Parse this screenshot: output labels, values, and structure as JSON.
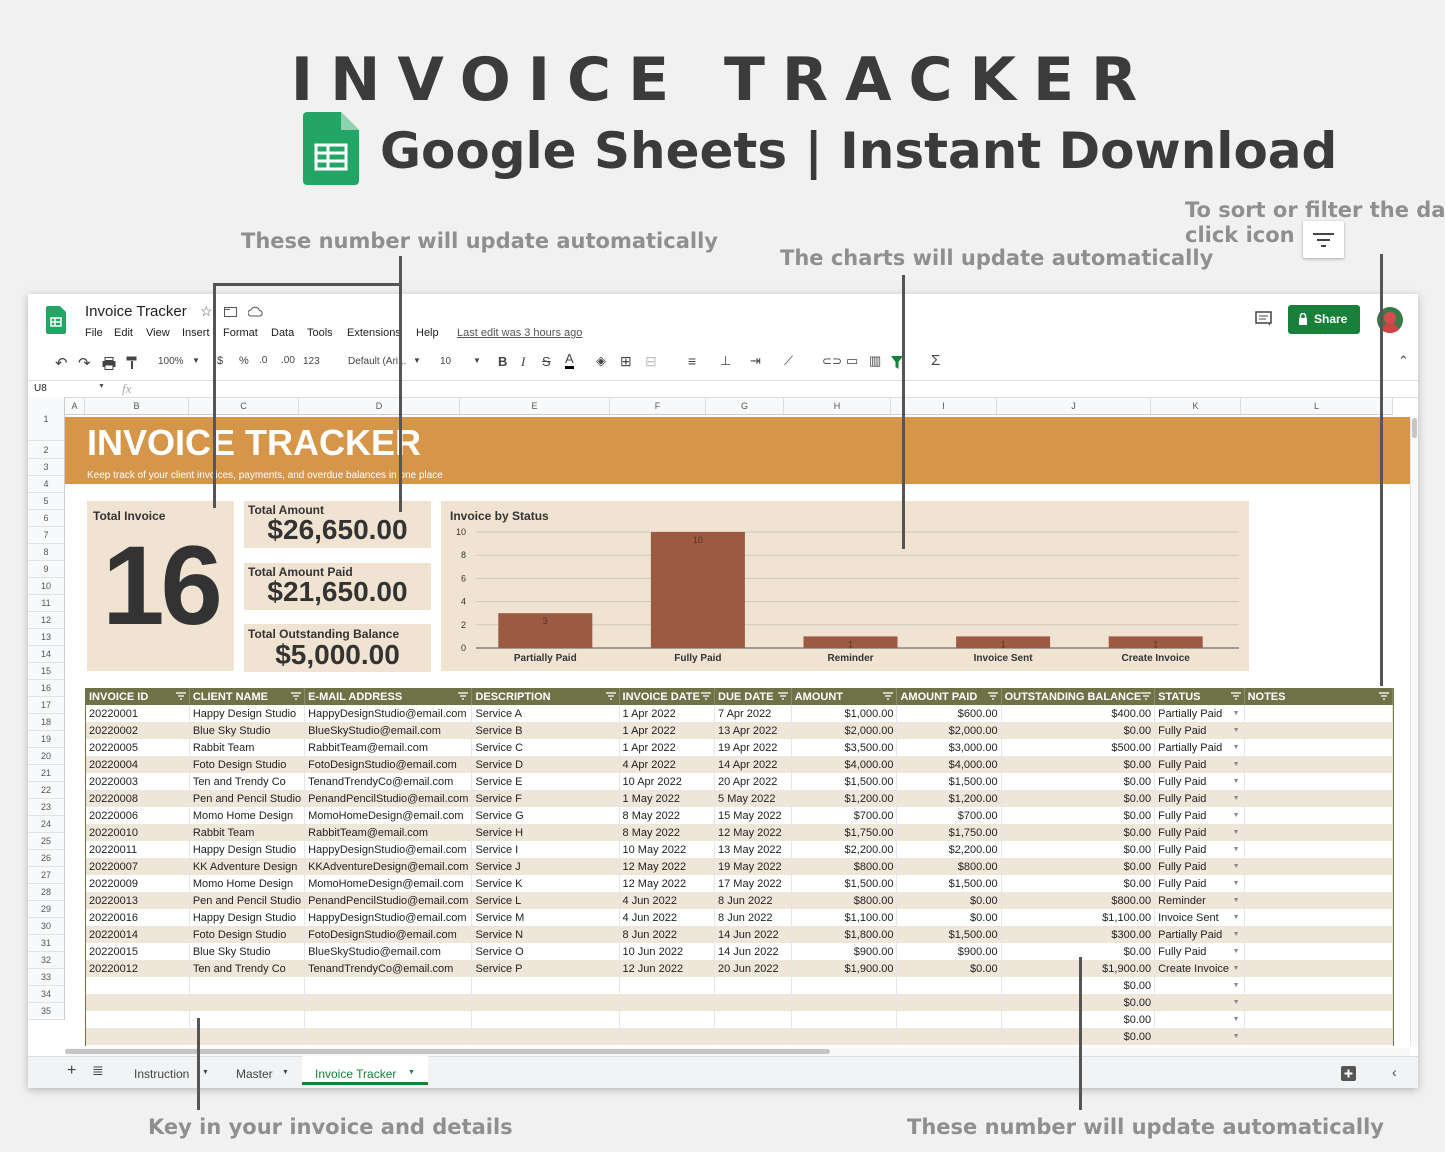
{
  "hero": {
    "title": "INVOICE TRACKER",
    "subtitle": "Google Sheets | Instant Download"
  },
  "annotations": {
    "numbers_top": "These number will update automatically",
    "charts": "The charts will update automatically",
    "sort_line1": "To sort or filter the data,",
    "sort_line2": "click icon",
    "key_in": "Key in your invoice and details",
    "numbers_bottom": "These number will update automatically"
  },
  "app": {
    "doc_title": "Invoice Tracker",
    "menus": [
      "File",
      "Edit",
      "View",
      "Insert",
      "Format",
      "Data",
      "Tools",
      "Extensions",
      "Help"
    ],
    "last_edit": "Last edit was 3 hours ago",
    "share_label": "Share",
    "zoom": "100%",
    "currency": "$",
    "percent": "%",
    "dec_less": ".0",
    "dec_more": ".00",
    "number_format": "123",
    "font": "Default (Ari...",
    "font_size": "10",
    "cell_ref": "U8",
    "fx": "fx"
  },
  "columns": [
    "A",
    "B",
    "C",
    "D",
    "E",
    "F",
    "G",
    "H",
    "I",
    "J",
    "K",
    "L"
  ],
  "rows": [
    "1",
    "2",
    "3",
    "4",
    "5",
    "6",
    "7",
    "8",
    "9",
    "10",
    "11",
    "12",
    "13",
    "14",
    "15",
    "16",
    "17",
    "18",
    "19",
    "20",
    "21",
    "22",
    "23",
    "24",
    "25",
    "26",
    "27",
    "28",
    "29",
    "30",
    "31",
    "32",
    "33",
    "34",
    "35"
  ],
  "sheet": {
    "banner_title": "INVOICE TRACKER",
    "banner_subtitle": "Keep track of your client invoices, payments, and overdue balances in one place",
    "kpi": {
      "total_invoice_label": "Total Invoice",
      "total_invoice_value": "16",
      "total_amount_label": "Total Amount",
      "total_amount_value": "$26,650.00",
      "total_paid_label": "Total Amount Paid",
      "total_paid_value": "$21,650.00",
      "outstanding_label": "Total Outstanding Balance",
      "outstanding_value": "$5,000.00"
    }
  },
  "chart_data": {
    "type": "bar",
    "title": "Invoice by Status",
    "categories": [
      "Partially Paid",
      "Fully Paid",
      "Reminder",
      "Invoice Sent",
      "Create Invoice"
    ],
    "values": [
      3,
      10,
      1,
      1,
      1
    ],
    "ylim": [
      0,
      10
    ],
    "yticks": [
      0,
      2,
      4,
      6,
      8,
      10
    ],
    "bar_color": "#9b5a41",
    "grid": true,
    "legend": "none"
  },
  "table": {
    "headers": [
      "INVOICE ID",
      "CLIENT NAME",
      "E-MAIL ADDRESS",
      "DESCRIPTION",
      "INVOICE DATE",
      "DUE DATE",
      "AMOUNT",
      "AMOUNT PAID",
      "OUTSTANDING BALANCE",
      "STATUS",
      "NOTES"
    ],
    "rows": [
      [
        "20220001",
        "Happy Design Studio",
        "HappyDesignStudio@email.com",
        "Service A",
        "1 Apr 2022",
        "7 Apr 2022",
        "$1,000.00",
        "$600.00",
        "$400.00",
        "Partially Paid",
        ""
      ],
      [
        "20220002",
        "Blue Sky Studio",
        "BlueSkyStudio@email.com",
        "Service B",
        "1 Apr 2022",
        "13 Apr 2022",
        "$2,000.00",
        "$2,000.00",
        "$0.00",
        "Fully Paid",
        ""
      ],
      [
        "20220005",
        "Rabbit Team",
        "RabbitTeam@email.com",
        "Service C",
        "1 Apr 2022",
        "19 Apr 2022",
        "$3,500.00",
        "$3,000.00",
        "$500.00",
        "Partially Paid",
        ""
      ],
      [
        "20220004",
        "Foto Design Studio",
        "FotoDesignStudio@email.com",
        "Service D",
        "4 Apr 2022",
        "14 Apr 2022",
        "$4,000.00",
        "$4,000.00",
        "$0.00",
        "Fully Paid",
        ""
      ],
      [
        "20220003",
        "Ten and Trendy Co",
        "TenandTrendyCo@email.com",
        "Service E",
        "10 Apr 2022",
        "20 Apr 2022",
        "$1,500.00",
        "$1,500.00",
        "$0.00",
        "Fully Paid",
        ""
      ],
      [
        "20220008",
        "Pen and Pencil Studio",
        "PenandPencilStudio@email.com",
        "Service F",
        "1 May 2022",
        "5 May 2022",
        "$1,200.00",
        "$1,200.00",
        "$0.00",
        "Fully Paid",
        ""
      ],
      [
        "20220006",
        "Momo Home Design",
        "MomoHomeDesign@email.com",
        "Service G",
        "8 May 2022",
        "15 May 2022",
        "$700.00",
        "$700.00",
        "$0.00",
        "Fully Paid",
        ""
      ],
      [
        "20220010",
        "Rabbit Team",
        "RabbitTeam@email.com",
        "Service H",
        "8 May 2022",
        "12 May 2022",
        "$1,750.00",
        "$1,750.00",
        "$0.00",
        "Fully Paid",
        ""
      ],
      [
        "20220011",
        "Happy Design Studio",
        "HappyDesignStudio@email.com",
        "Service I",
        "10 May 2022",
        "13 May 2022",
        "$2,200.00",
        "$2,200.00",
        "$0.00",
        "Fully Paid",
        ""
      ],
      [
        "20220007",
        "KK Adventure Design",
        "KKAdventureDesign@email.com",
        "Service J",
        "12 May 2022",
        "19 May 2022",
        "$800.00",
        "$800.00",
        "$0.00",
        "Fully Paid",
        ""
      ],
      [
        "20220009",
        "Momo Home Design",
        "MomoHomeDesign@email.com",
        "Service K",
        "12 May 2022",
        "17 May 2022",
        "$1,500.00",
        "$1,500.00",
        "$0.00",
        "Fully Paid",
        ""
      ],
      [
        "20220013",
        "Pen and Pencil Studio",
        "PenandPencilStudio@email.com",
        "Service L",
        "4 Jun 2022",
        "8 Jun 2022",
        "$800.00",
        "$0.00",
        "$800.00",
        "Reminder",
        ""
      ],
      [
        "20220016",
        "Happy Design Studio",
        "HappyDesignStudio@email.com",
        "Service M",
        "4 Jun 2022",
        "8 Jun 2022",
        "$1,100.00",
        "$0.00",
        "$1,100.00",
        "Invoice Sent",
        ""
      ],
      [
        "20220014",
        "Foto Design Studio",
        "FotoDesignStudio@email.com",
        "Service N",
        "8 Jun 2022",
        "14 Jun 2022",
        "$1,800.00",
        "$1,500.00",
        "$300.00",
        "Partially Paid",
        ""
      ],
      [
        "20220015",
        "Blue Sky Studio",
        "BlueSkyStudio@email.com",
        "Service O",
        "10 Jun 2022",
        "14 Jun 2022",
        "$900.00",
        "$900.00",
        "$0.00",
        "Fully Paid",
        ""
      ],
      [
        "20220012",
        "Ten and Trendy Co",
        "TenandTrendyCo@email.com",
        "Service P",
        "12 Jun 2022",
        "20 Jun 2022",
        "$1,900.00",
        "$0.00",
        "$1,900.00",
        "Create Invoice",
        ""
      ],
      [
        "",
        "",
        "",
        "",
        "",
        "",
        "",
        "",
        "$0.00",
        "",
        ""
      ],
      [
        "",
        "",
        "",
        "",
        "",
        "",
        "",
        "",
        "$0.00",
        "",
        ""
      ],
      [
        "",
        "",
        "",
        "",
        "",
        "",
        "",
        "",
        "$0.00",
        "",
        ""
      ],
      [
        "",
        "",
        "",
        "",
        "",
        "",
        "",
        "",
        "$0.00",
        "",
        ""
      ]
    ]
  },
  "tabs": [
    "Instruction",
    "Master",
    "Invoice Tracker"
  ],
  "colors": {
    "accent": "#d6964a",
    "header": "#6f7147",
    "bar": "#9b5a41",
    "share": "#188038",
    "card": "#f0e3d2"
  }
}
